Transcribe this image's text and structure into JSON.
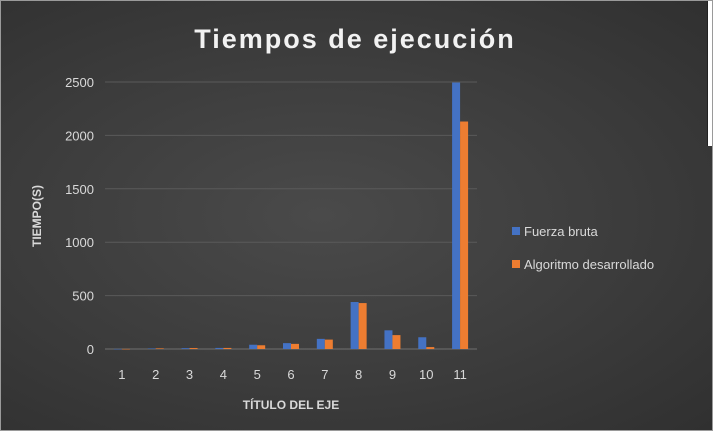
{
  "chart_data": {
    "type": "bar",
    "title": "Tiempos de ejecución",
    "xlabel": "TÍTULO DEL EJE",
    "ylabel": "TIEMPO(S)",
    "categories": [
      "1",
      "2",
      "3",
      "4",
      "5",
      "6",
      "7",
      "8",
      "9",
      "10",
      "11"
    ],
    "ylim": [
      0,
      2500
    ],
    "yticks": [
      0,
      500,
      1000,
      1500,
      2000,
      2500
    ],
    "grid": true,
    "legend_position": "right",
    "series": [
      {
        "name": "Fuerza bruta",
        "color": "#4472C4",
        "values": [
          1,
          5,
          8,
          10,
          40,
          55,
          95,
          440,
          175,
          110,
          2495
        ]
      },
      {
        "name": "Algoritmo desarrollado",
        "color": "#ED7D31",
        "values": [
          1,
          6,
          9,
          10,
          35,
          48,
          88,
          430,
          130,
          18,
          2130
        ]
      }
    ]
  }
}
